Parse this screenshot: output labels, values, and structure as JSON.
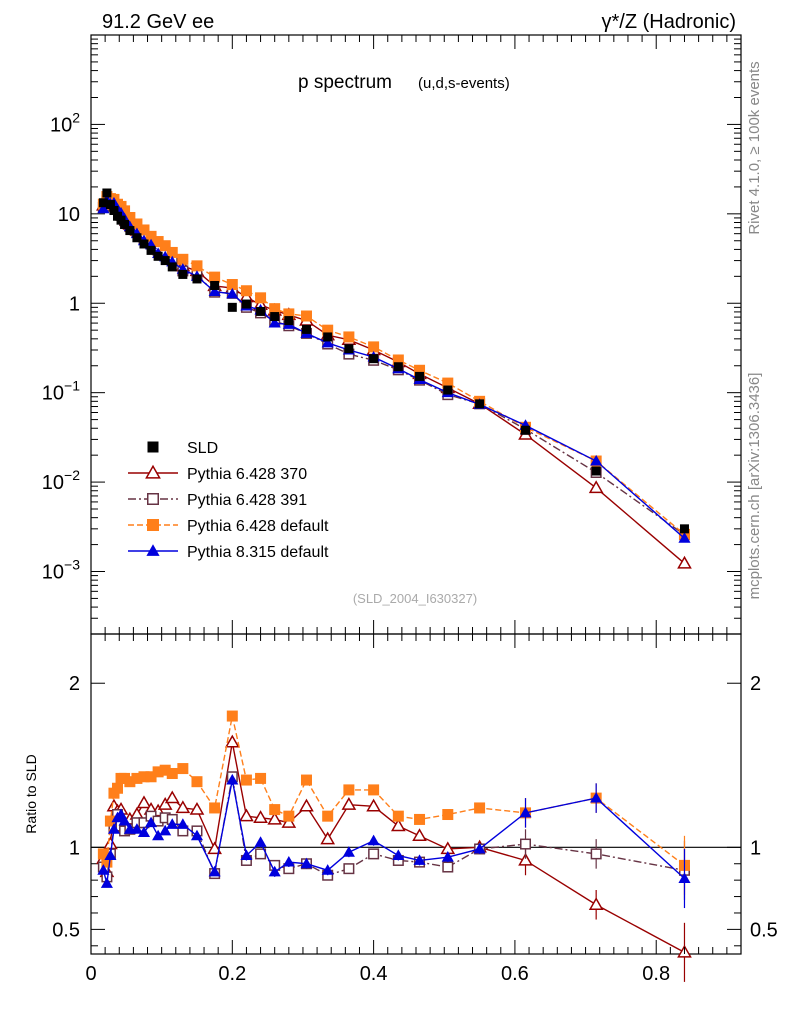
{
  "header": {
    "left": "91.2 GeV ee",
    "right": "γ*/Z (Hadronic)"
  },
  "side": {
    "rivet": "Rivet 4.1.0, ≥ 100k events",
    "mcplots": "mcplots.cern.ch [arXiv:1306.3436]"
  },
  "colors": {
    "sld": "#000000",
    "p370": "#990000",
    "p391": "#663344",
    "p6def": "#ff7f1a",
    "p8def": "#0000dd"
  },
  "chart_data": [
    {
      "type": "line",
      "title": "p spectrum",
      "subtitle": "(u,d,s-events)",
      "watermark": "(SLD_2004_I630327)",
      "xlabel": "",
      "ylabel": "",
      "yscale": "log",
      "xlim": [
        0,
        0.92
      ],
      "ylim": [
        0.0002,
        1000
      ],
      "y_ticks": [
        {
          "v": 0.001,
          "base": "10",
          "exp": "−3"
        },
        {
          "v": 0.01,
          "base": "10",
          "exp": "−2"
        },
        {
          "v": 0.1,
          "base": "10",
          "exp": "−1"
        },
        {
          "v": 1,
          "base": "1",
          "exp": ""
        },
        {
          "v": 10,
          "base": "10",
          "exp": ""
        },
        {
          "v": 100,
          "base": "10",
          "exp": "2"
        }
      ],
      "x": [
        0.0175,
        0.0225,
        0.0275,
        0.0325,
        0.0375,
        0.0425,
        0.0475,
        0.055,
        0.065,
        0.075,
        0.085,
        0.095,
        0.105,
        0.115,
        0.13,
        0.15,
        0.175,
        0.2,
        0.22,
        0.24,
        0.26,
        0.28,
        0.305,
        0.335,
        0.365,
        0.4,
        0.435,
        0.465,
        0.505,
        0.55,
        0.615,
        0.715,
        0.84
      ],
      "series": [
        {
          "name": "SLD",
          "key": "sld",
          "marker": "square-filled",
          "line": "none",
          "values": [
            13.3,
            17.1,
            12.7,
            10.9,
            9.4,
            8.5,
            7.6,
            6.5,
            5.4,
            4.6,
            3.9,
            3.35,
            3.0,
            2.55,
            2.1,
            1.87,
            1.58,
            0.9,
            0.98,
            0.81,
            0.71,
            0.64,
            0.51,
            0.42,
            0.31,
            0.24,
            0.195,
            0.152,
            0.107,
            0.075,
            0.038,
            0.0133,
            0.003
          ]
        },
        {
          "name": "Pythia 6.428 370",
          "key": "p370",
          "marker": "triangle-open",
          "line": "solid",
          "values": [
            12.4,
            14.5,
            13.0,
            13.6,
            11.5,
            10.5,
            8.7,
            7.6,
            6.5,
            5.9,
            4.8,
            4.1,
            3.8,
            3.3,
            2.6,
            2.3,
            1.56,
            1.48,
            1.17,
            0.96,
            0.83,
            0.74,
            0.64,
            0.44,
            0.39,
            0.3,
            0.22,
            0.162,
            0.113,
            0.075,
            0.034,
            0.0086,
            0.00123
          ]
        },
        {
          "name": "Pythia 6.428 391",
          "key": "p391",
          "marker": "square-open",
          "line": "dashdot",
          "values": [
            11.8,
            14.0,
            12.2,
            12.2,
            11.3,
            9.6,
            8.4,
            7.2,
            6.2,
            5.3,
            4.6,
            3.9,
            3.5,
            3.0,
            2.3,
            2.06,
            1.33,
            1.29,
            0.9,
            0.78,
            0.63,
            0.56,
            0.46,
            0.35,
            0.27,
            0.23,
            0.18,
            0.138,
            0.095,
            0.075,
            0.039,
            0.0128,
            0.00258
          ]
        },
        {
          "name": "Pythia 6.428 default",
          "key": "p6def",
          "marker": "square-filled",
          "line": "dashed",
          "values": [
            12.8,
            15.6,
            14.8,
            14.5,
            12.8,
            12.1,
            10.8,
            9.1,
            7.7,
            6.6,
            5.6,
            4.9,
            4.4,
            3.7,
            3.1,
            2.62,
            1.96,
            1.62,
            1.38,
            1.15,
            0.87,
            0.76,
            0.72,
            0.5,
            0.42,
            0.325,
            0.232,
            0.178,
            0.128,
            0.08,
            0.041,
            0.0172,
            0.0026
          ]
        },
        {
          "name": "Pythia 8.315 default",
          "key": "p8def",
          "marker": "triangle-filled",
          "line": "solid",
          "values": [
            11.4,
            14.2,
            12.9,
            13.2,
            11.3,
            10.2,
            8.8,
            7.2,
            6.0,
            5.0,
            4.5,
            3.6,
            3.3,
            2.9,
            2.4,
            2.0,
            1.35,
            1.27,
            0.93,
            0.84,
            0.6,
            0.58,
            0.46,
            0.36,
            0.3,
            0.25,
            0.185,
            0.14,
            0.1,
            0.074,
            0.043,
            0.0172,
            0.00235
          ]
        }
      ]
    },
    {
      "type": "line",
      "title": "",
      "xlabel": "",
      "ylabel": "Ratio to SLD",
      "xlim": [
        0,
        0.92
      ],
      "ylim": [
        0.35,
        2.3
      ],
      "y_ticks": [
        "0.5",
        "1",
        "2"
      ],
      "x_ticks": [
        "0",
        "0.2",
        "0.4",
        "0.6",
        "0.8"
      ],
      "reference_line": 1,
      "series": [
        {
          "name": "Pythia 6.428 370",
          "key": "p370",
          "values": [
            0.93,
            0.85,
            1.02,
            1.25,
            1.22,
            1.23,
            1.14,
            1.17,
            1.2,
            1.27,
            1.23,
            1.22,
            1.26,
            1.3,
            1.24,
            1.23,
            0.99,
            1.64,
            1.19,
            1.18,
            1.17,
            1.15,
            1.25,
            1.05,
            1.26,
            1.25,
            1.13,
            1.07,
            0.99,
            1.0,
            0.92,
            0.65,
            0.36
          ]
        },
        {
          "name": "Pythia 6.428 391",
          "key": "p391",
          "values": [
            0.88,
            0.82,
            0.96,
            1.12,
            1.2,
            1.13,
            1.1,
            1.11,
            1.15,
            1.15,
            1.19,
            1.16,
            1.18,
            1.17,
            1.1,
            1.1,
            0.84,
            1.43,
            0.92,
            0.96,
            0.89,
            0.87,
            0.9,
            0.83,
            0.87,
            0.96,
            0.92,
            0.91,
            0.88,
            0.99,
            1.02,
            0.96,
            0.86
          ]
        },
        {
          "name": "Pythia 6.428 default",
          "key": "p6def",
          "values": [
            0.96,
            0.91,
            1.16,
            1.33,
            1.36,
            1.42,
            1.42,
            1.4,
            1.42,
            1.43,
            1.43,
            1.46,
            1.47,
            1.45,
            1.48,
            1.4,
            1.24,
            1.8,
            1.41,
            1.42,
            1.23,
            1.19,
            1.41,
            1.19,
            1.35,
            1.35,
            1.19,
            1.17,
            1.2,
            1.24,
            1.21,
            1.3,
            0.89
          ]
        },
        {
          "name": "Pythia 8.315 default",
          "key": "p8def",
          "values": [
            0.86,
            0.78,
            0.95,
            1.11,
            1.18,
            1.2,
            1.16,
            1.11,
            1.11,
            1.09,
            1.15,
            1.07,
            1.1,
            1.14,
            1.14,
            1.07,
            0.85,
            1.41,
            0.95,
            1.03,
            0.85,
            0.91,
            0.9,
            0.86,
            0.97,
            1.04,
            0.95,
            0.92,
            0.94,
            0.99,
            1.21,
            1.3,
            0.81
          ]
        }
      ]
    }
  ]
}
